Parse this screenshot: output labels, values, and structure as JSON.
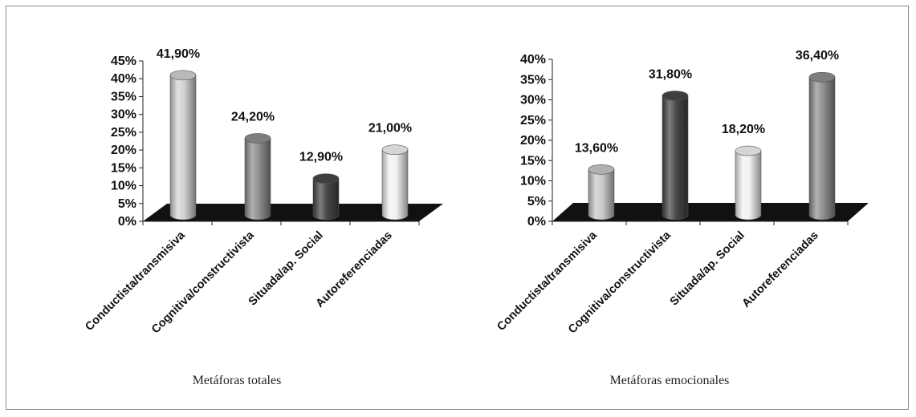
{
  "chart_data": [
    {
      "type": "bar",
      "style": "3d-cylinder",
      "title": "",
      "caption": "Metáforas totales",
      "categories": [
        "Conductista/transmisiva",
        "Cognitiva/constructivista",
        "Situada/ap. Social",
        "Autoreferenciadas"
      ],
      "values": [
        41.9,
        24.2,
        12.9,
        21.0
      ],
      "data_labels": [
        "41,90%",
        "24,20%",
        "12,90%",
        "21,00%"
      ],
      "bar_colors": [
        "#d2d2d2",
        "#8f8f8f",
        "#474747",
        "#f2f2f2"
      ],
      "ylim": [
        0,
        45
      ],
      "yticks": [
        "0%",
        "5%",
        "10%",
        "15%",
        "20%",
        "25%",
        "30%",
        "35%",
        "40%",
        "45%"
      ],
      "xlabel": "",
      "ylabel": "",
      "grid": false,
      "legend": "none",
      "floor_color": "#111111"
    },
    {
      "type": "bar",
      "style": "3d-cylinder",
      "title": "",
      "caption": "Metáforas emocionales",
      "categories": [
        "Conductista/transmisiva",
        "Cognitiva/constructivista",
        "Situada/ap. Social",
        "Autoreferenciadas"
      ],
      "values": [
        13.6,
        31.8,
        18.2,
        36.4
      ],
      "data_labels": [
        "13,60%",
        "31,80%",
        "18,20%",
        "36,40%"
      ],
      "bar_colors": [
        "#c8c8c8",
        "#474747",
        "#f2f2f2",
        "#8f8f8f"
      ],
      "ylim": [
        0,
        40
      ],
      "yticks": [
        "0%",
        "5%",
        "10%",
        "15%",
        "20%",
        "25%",
        "30%",
        "35%",
        "40%"
      ],
      "xlabel": "",
      "ylabel": "",
      "grid": false,
      "legend": "none",
      "floor_color": "#111111"
    }
  ]
}
